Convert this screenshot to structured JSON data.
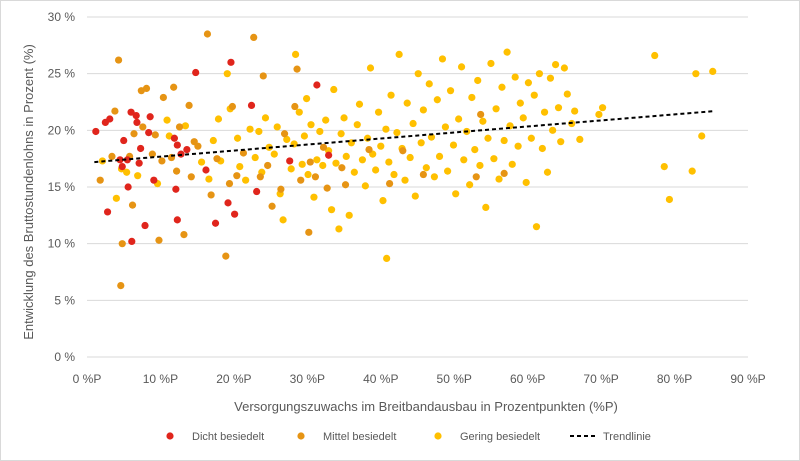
{
  "chart_data": {
    "type": "scatter",
    "title": "",
    "xlabel": "Versorgungszuwachs im Breitbandausbau in Prozentpunkten (%P)",
    "ylabel": "Entwicklung des Bruttostundenlohns in Prozent (%)",
    "xlim": [
      0,
      90
    ],
    "ylim": [
      0,
      30
    ],
    "x_ticks": [
      0,
      10,
      20,
      30,
      40,
      50,
      60,
      70,
      80,
      90
    ],
    "x_tick_labels": [
      "0 %P",
      "10 %P",
      "20 %P",
      "30 %P",
      "40 %P",
      "50 %P",
      "60 %P",
      "70 %P",
      "80 %P",
      "90 %P"
    ],
    "y_ticks": [
      0,
      5,
      10,
      15,
      20,
      25,
      30
    ],
    "y_tick_labels": [
      "0 %",
      "5 %",
      "10 %",
      "15 %",
      "20 %",
      "25 %",
      "30 %"
    ],
    "grid": "horizontal",
    "legend_position": "bottom",
    "series": [
      {
        "name": "Dicht besiedelt",
        "color": "#e0251c",
        "points": [
          [
            1.2,
            19.9
          ],
          [
            2.5,
            20.7
          ],
          [
            3.1,
            21.0
          ],
          [
            2.8,
            12.8
          ],
          [
            4.5,
            17.4
          ],
          [
            4.8,
            16.8
          ],
          [
            5.0,
            19.1
          ],
          [
            5.5,
            17.4
          ],
          [
            5.6,
            15.0
          ],
          [
            6.0,
            21.6
          ],
          [
            6.1,
            10.2
          ],
          [
            6.7,
            21.3
          ],
          [
            6.8,
            20.7
          ],
          [
            7.1,
            17.1
          ],
          [
            7.3,
            18.4
          ],
          [
            7.9,
            11.6
          ],
          [
            8.4,
            19.8
          ],
          [
            8.6,
            21.2
          ],
          [
            9.1,
            15.6
          ],
          [
            11.9,
            19.3
          ],
          [
            12.3,
            18.7
          ],
          [
            12.8,
            17.9
          ],
          [
            12.1,
            14.8
          ],
          [
            13.6,
            18.3
          ],
          [
            14.8,
            25.1
          ],
          [
            16.2,
            16.5
          ],
          [
            17.5,
            11.8
          ],
          [
            19.6,
            26.0
          ],
          [
            19.2,
            13.6
          ],
          [
            20.1,
            12.6
          ],
          [
            22.4,
            22.2
          ],
          [
            23.1,
            14.6
          ],
          [
            27.6,
            17.3
          ],
          [
            31.3,
            24.0
          ],
          [
            32.9,
            17.8
          ],
          [
            12.3,
            12.1
          ]
        ]
      },
      {
        "name": "Mittel besiedelt",
        "color": "#e69414",
        "points": [
          [
            1.8,
            15.6
          ],
          [
            3.4,
            17.7
          ],
          [
            3.8,
            21.7
          ],
          [
            4.3,
            26.2
          ],
          [
            4.6,
            6.3
          ],
          [
            4.8,
            10.0
          ],
          [
            5.8,
            17.7
          ],
          [
            6.2,
            13.4
          ],
          [
            6.4,
            19.7
          ],
          [
            7.4,
            23.5
          ],
          [
            7.6,
            20.3
          ],
          [
            8.1,
            23.7
          ],
          [
            8.9,
            17.9
          ],
          [
            9.3,
            19.6
          ],
          [
            9.8,
            10.3
          ],
          [
            10.2,
            17.3
          ],
          [
            10.4,
            22.9
          ],
          [
            11.5,
            17.6
          ],
          [
            11.8,
            23.8
          ],
          [
            12.2,
            16.4
          ],
          [
            12.6,
            20.3
          ],
          [
            13.2,
            10.8
          ],
          [
            13.9,
            22.2
          ],
          [
            14.2,
            15.9
          ],
          [
            14.6,
            19.0
          ],
          [
            15.1,
            18.6
          ],
          [
            16.4,
            28.5
          ],
          [
            16.9,
            14.3
          ],
          [
            17.7,
            17.5
          ],
          [
            18.9,
            8.9
          ],
          [
            19.4,
            15.3
          ],
          [
            19.8,
            22.1
          ],
          [
            20.4,
            16.0
          ],
          [
            21.3,
            18.0
          ],
          [
            22.7,
            28.2
          ],
          [
            23.6,
            15.9
          ],
          [
            24.0,
            24.8
          ],
          [
            24.6,
            16.9
          ],
          [
            25.2,
            13.3
          ],
          [
            26.4,
            14.8
          ],
          [
            26.9,
            19.7
          ],
          [
            28.3,
            22.1
          ],
          [
            28.6,
            25.4
          ],
          [
            29.1,
            15.6
          ],
          [
            30.2,
            11.0
          ],
          [
            30.4,
            17.2
          ],
          [
            31.1,
            15.9
          ],
          [
            32.2,
            18.5
          ],
          [
            32.7,
            14.9
          ],
          [
            34.7,
            16.7
          ],
          [
            35.2,
            15.2
          ],
          [
            38.4,
            18.3
          ],
          [
            41.2,
            15.3
          ],
          [
            43.0,
            18.2
          ],
          [
            45.8,
            16.1
          ],
          [
            53.0,
            15.9
          ],
          [
            53.6,
            21.4
          ],
          [
            56.8,
            16.2
          ]
        ]
      },
      {
        "name": "Gering besiedelt",
        "color": "#ffc000",
        "points": [
          [
            2.1,
            17.3
          ],
          [
            4.0,
            14.0
          ],
          [
            5.4,
            16.3
          ],
          [
            9.6,
            15.3
          ],
          [
            10.9,
            20.9
          ],
          [
            11.2,
            19.5
          ],
          [
            13.4,
            20.4
          ],
          [
            15.6,
            17.2
          ],
          [
            16.6,
            15.7
          ],
          [
            17.2,
            19.1
          ],
          [
            17.9,
            21.0
          ],
          [
            18.2,
            17.3
          ],
          [
            19.1,
            25.0
          ],
          [
            19.5,
            21.9
          ],
          [
            20.5,
            19.3
          ],
          [
            20.8,
            16.8
          ],
          [
            21.6,
            15.6
          ],
          [
            22.2,
            20.1
          ],
          [
            22.9,
            17.6
          ],
          [
            23.4,
            19.9
          ],
          [
            23.8,
            16.3
          ],
          [
            24.3,
            21.1
          ],
          [
            24.8,
            18.5
          ],
          [
            25.5,
            17.9
          ],
          [
            25.9,
            20.3
          ],
          [
            26.3,
            14.4
          ],
          [
            26.7,
            12.1
          ],
          [
            27.2,
            19.2
          ],
          [
            27.8,
            16.6
          ],
          [
            28.2,
            18.8
          ],
          [
            28.4,
            26.7
          ],
          [
            28.9,
            21.6
          ],
          [
            29.3,
            17.0
          ],
          [
            29.6,
            19.5
          ],
          [
            29.9,
            22.8
          ],
          [
            30.1,
            16.1
          ],
          [
            30.5,
            20.5
          ],
          [
            30.9,
            14.1
          ],
          [
            31.3,
            17.4
          ],
          [
            31.7,
            19.9
          ],
          [
            32.1,
            16.9
          ],
          [
            32.5,
            20.9
          ],
          [
            32.9,
            18.2
          ],
          [
            33.3,
            13.0
          ],
          [
            33.6,
            23.6
          ],
          [
            33.9,
            17.1
          ],
          [
            34.3,
            11.3
          ],
          [
            34.6,
            19.7
          ],
          [
            35.0,
            21.1
          ],
          [
            35.3,
            17.7
          ],
          [
            35.7,
            12.5
          ],
          [
            36.0,
            18.9
          ],
          [
            36.4,
            16.3
          ],
          [
            36.8,
            20.5
          ],
          [
            37.1,
            22.3
          ],
          [
            37.5,
            17.4
          ],
          [
            37.9,
            15.1
          ],
          [
            38.2,
            19.3
          ],
          [
            38.6,
            25.5
          ],
          [
            38.9,
            17.9
          ],
          [
            39.3,
            16.5
          ],
          [
            39.7,
            21.6
          ],
          [
            40.0,
            18.6
          ],
          [
            40.3,
            13.8
          ],
          [
            40.7,
            20.1
          ],
          [
            41.1,
            17.2
          ],
          [
            41.4,
            23.1
          ],
          [
            41.8,
            16.1
          ],
          [
            42.2,
            19.8
          ],
          [
            42.5,
            26.7
          ],
          [
            42.9,
            18.4
          ],
          [
            43.3,
            15.6
          ],
          [
            43.6,
            22.4
          ],
          [
            44.0,
            17.6
          ],
          [
            44.4,
            20.6
          ],
          [
            44.7,
            14.2
          ],
          [
            45.1,
            25.0
          ],
          [
            45.5,
            18.9
          ],
          [
            45.8,
            21.8
          ],
          [
            46.2,
            16.7
          ],
          [
            46.6,
            24.1
          ],
          [
            46.9,
            19.4
          ],
          [
            47.3,
            15.9
          ],
          [
            47.7,
            22.7
          ],
          [
            48.0,
            17.7
          ],
          [
            48.4,
            26.3
          ],
          [
            48.8,
            20.3
          ],
          [
            49.1,
            16.4
          ],
          [
            49.5,
            23.5
          ],
          [
            49.9,
            18.7
          ],
          [
            50.2,
            14.4
          ],
          [
            50.6,
            21.0
          ],
          [
            51.0,
            25.6
          ],
          [
            51.3,
            17.4
          ],
          [
            51.7,
            19.9
          ],
          [
            52.1,
            15.2
          ],
          [
            52.4,
            22.9
          ],
          [
            52.8,
            18.3
          ],
          [
            53.2,
            24.4
          ],
          [
            53.5,
            16.9
          ],
          [
            53.9,
            20.8
          ],
          [
            54.3,
            13.2
          ],
          [
            54.6,
            19.3
          ],
          [
            55.0,
            25.9
          ],
          [
            55.4,
            17.5
          ],
          [
            55.7,
            21.9
          ],
          [
            56.1,
            15.7
          ],
          [
            56.5,
            23.8
          ],
          [
            56.8,
            19.1
          ],
          [
            57.2,
            26.9
          ],
          [
            57.6,
            20.4
          ],
          [
            57.9,
            17.0
          ],
          [
            58.3,
            24.7
          ],
          [
            58.7,
            18.6
          ],
          [
            59.0,
            22.4
          ],
          [
            59.4,
            21.1
          ],
          [
            59.8,
            15.4
          ],
          [
            60.1,
            24.2
          ],
          [
            60.5,
            19.3
          ],
          [
            60.9,
            23.1
          ],
          [
            61.2,
            11.5
          ],
          [
            61.6,
            25.0
          ],
          [
            62.0,
            18.4
          ],
          [
            62.3,
            21.6
          ],
          [
            62.7,
            16.3
          ],
          [
            63.1,
            24.6
          ],
          [
            63.4,
            20.0
          ],
          [
            63.8,
            25.8
          ],
          [
            64.2,
            22.0
          ],
          [
            64.5,
            19.0
          ],
          [
            65.0,
            25.5
          ],
          [
            65.4,
            23.2
          ],
          [
            66.0,
            20.6
          ],
          [
            66.4,
            21.7
          ],
          [
            67.1,
            19.2
          ],
          [
            69.7,
            21.4
          ],
          [
            70.2,
            22.0
          ],
          [
            77.3,
            26.6
          ],
          [
            78.6,
            16.8
          ],
          [
            79.3,
            13.9
          ],
          [
            82.4,
            16.4
          ],
          [
            82.9,
            25.0
          ],
          [
            83.7,
            19.5
          ],
          [
            85.2,
            25.2
          ],
          [
            40.8,
            8.7
          ],
          [
            4.7,
            16.6
          ],
          [
            6.9,
            16.0
          ]
        ]
      }
    ],
    "trendline": {
      "name": "Trendlinie",
      "color": "#000000",
      "style": "dashed",
      "start": [
        1.0,
        17.2
      ],
      "end": [
        85.5,
        21.7
      ]
    }
  }
}
